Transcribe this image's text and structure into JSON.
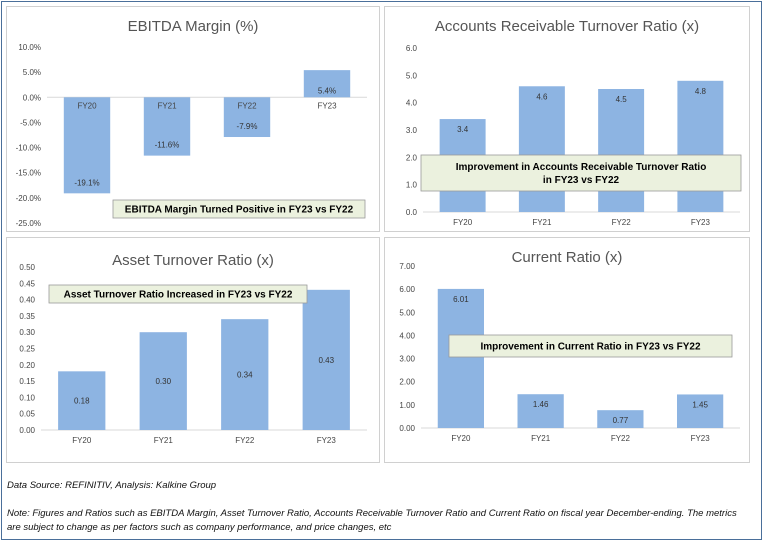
{
  "chart_data": [
    {
      "type": "bar",
      "title": "EBITDA Margin (%)",
      "categories": [
        "FY20",
        "FY21",
        "FY22",
        "FY23"
      ],
      "values": [
        -19.1,
        -11.6,
        -7.9,
        5.4
      ],
      "value_labels": [
        "-19.1%",
        "-11.6%",
        "-7.9%",
        "5.4%"
      ],
      "yticks": [
        "10.0%",
        "5.0%",
        "0.0%",
        "-5.0%",
        "-10.0%",
        "-15.0%",
        "-20.0%",
        "-25.0%"
      ],
      "ylim": [
        -25,
        10
      ],
      "callout": "EBITDA Margin Turned Positive in FY23 vs FY22",
      "color": "#8db4e2"
    },
    {
      "type": "bar",
      "title": "Accounts Receivable Turnover Ratio (x)",
      "categories": [
        "FY20",
        "FY21",
        "FY22",
        "FY23"
      ],
      "values": [
        3.4,
        4.6,
        4.5,
        4.8
      ],
      "value_labels": [
        "3.4",
        "4.6",
        "4.5",
        "4.8"
      ],
      "yticks": [
        "6.0",
        "5.0",
        "4.0",
        "3.0",
        "2.0",
        "1.0",
        "0.0"
      ],
      "ylim": [
        0,
        6
      ],
      "callout": [
        "Improvement in Accounts Receivable Turnover Ratio",
        "in FY23 vs FY22"
      ],
      "color": "#8db4e2"
    },
    {
      "type": "bar",
      "title": "Asset Turnover Ratio (x)",
      "categories": [
        "FY20",
        "FY21",
        "FY22",
        "FY23"
      ],
      "values": [
        0.18,
        0.3,
        0.34,
        0.43
      ],
      "value_labels": [
        "0.18",
        "0.30",
        "0.34",
        "0.43"
      ],
      "yticks": [
        "0.50",
        "0.45",
        "0.40",
        "0.35",
        "0.30",
        "0.25",
        "0.20",
        "0.15",
        "0.10",
        "0.05",
        "0.00"
      ],
      "ylim": [
        0,
        0.5
      ],
      "callout": "Asset Turnover Ratio Increased in FY23 vs FY22",
      "color": "#8db4e2"
    },
    {
      "type": "bar",
      "title": "Current Ratio (x)",
      "categories": [
        "FY20",
        "FY21",
        "FY22",
        "FY23"
      ],
      "values": [
        6.01,
        1.46,
        0.77,
        1.45
      ],
      "value_labels": [
        "6.01",
        "1.46",
        "0.77",
        "1.45"
      ],
      "yticks": [
        "7.00",
        "6.00",
        "5.00",
        "4.00",
        "3.00",
        "2.00",
        "1.00",
        "0.00"
      ],
      "ylim": [
        0,
        7
      ],
      "callout": "Improvement in Current Ratio in FY23 vs FY22",
      "color": "#8db4e2"
    }
  ],
  "notes": {
    "source": "Data Source: REFINITIV, Analysis: Kalkine Group",
    "disclaimer_line1": "Note: Figures and Ratios such as EBITDA Margin, Asset Turnover Ratio, Accounts Receivable Turnover Ratio and Current Ratio on fiscal year December-ending. The metrics",
    "disclaimer_line2": "are subject to change as per factors such as company performance, and price changes, etc"
  }
}
